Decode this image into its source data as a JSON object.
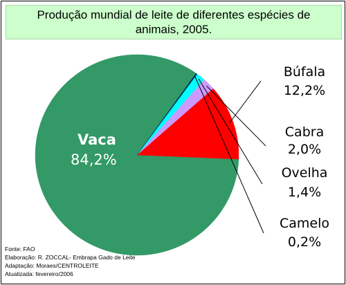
{
  "title": "Produção mundial de leite de diferentes espécies de animais, 2005.",
  "chart_data": {
    "type": "pie",
    "title": "Produção mundial de leite de diferentes espécies de animais, 2005.",
    "slices": [
      {
        "name": "Vaca",
        "value": 84.2,
        "label": "84,2%",
        "color": "#339966"
      },
      {
        "name": "Búfala",
        "value": 12.2,
        "label": "12,2%",
        "color": "#ff0000"
      },
      {
        "name": "Cabra",
        "value": 2.0,
        "label": "2,0%",
        "color": "#cc99ff"
      },
      {
        "name": "Ovelha",
        "value": 1.4,
        "label": "1,4%",
        "color": "#00ffff"
      },
      {
        "name": "Camelo",
        "value": 0.2,
        "label": "0,2%",
        "color": "#003366"
      }
    ]
  },
  "credits": [
    "Fonte: FAO",
    "Elaboração: R. ZOCCAL- Embrapa Gado de Leite",
    "Adaptação: Moraes/CENTROLEITE",
    "Atualizada: fevereiro/2006"
  ]
}
